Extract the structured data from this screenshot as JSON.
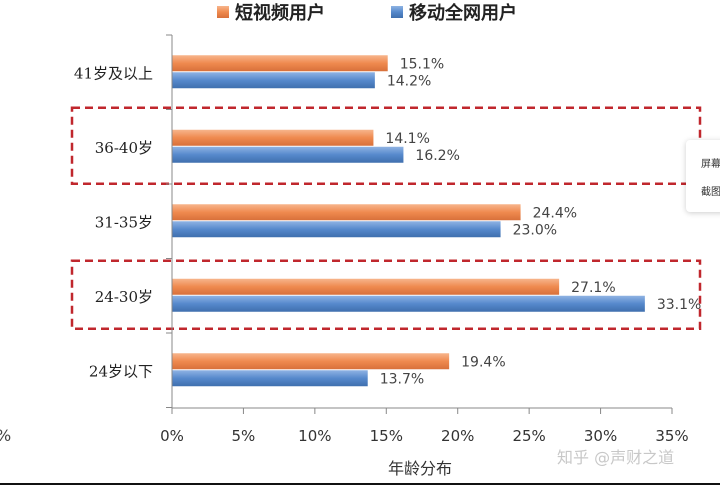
{
  "chart_data": {
    "type": "bar",
    "orientation": "horizontal",
    "categories": [
      "41岁及以上",
      "36-40岁",
      "31-35岁",
      "24-30岁",
      "24岁以下"
    ],
    "series": [
      {
        "name": "短视频用户",
        "color": "#f0905a",
        "values": [
          15.1,
          14.1,
          24.4,
          27.1,
          19.4
        ],
        "labels": [
          "15.1%",
          "14.1%",
          "24.4%",
          "27.1%",
          "19.4%"
        ]
      },
      {
        "name": "移动全网用户",
        "color": "#5b8fd0",
        "values": [
          14.2,
          16.2,
          23.0,
          33.1,
          13.7
        ],
        "labels": [
          "14.2%",
          "16.2%",
          "23.0%",
          "33.1%",
          "13.7%"
        ]
      }
    ],
    "xlabel": "年龄分布",
    "xlim": [
      0,
      35
    ],
    "xticks": [
      "0%",
      "5%",
      "10%",
      "15%",
      "20%",
      "25%",
      "30%",
      "35%"
    ],
    "legend": "top",
    "grid": false,
    "highlighted_categories": [
      "36-40岁",
      "24-30岁"
    ],
    "highlight_color": "#c0272d"
  },
  "popup": {
    "items": [
      "屏幕",
      "截图"
    ]
  },
  "left_fragment": "%",
  "watermark": "知乎 @声财之道"
}
